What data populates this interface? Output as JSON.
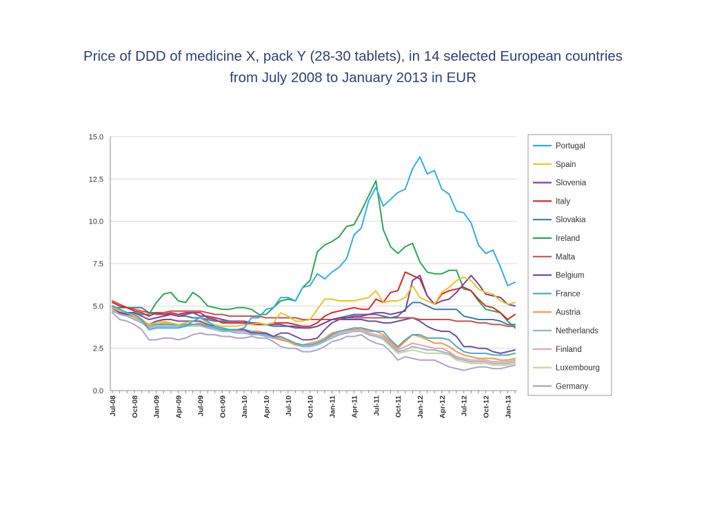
{
  "title": {
    "line1": "Price of DDD of medicine X, pack Y (28-30 tablets), in 14 selected European countries",
    "line2": "from July 2008 to January 2013 in EUR"
  },
  "chart_data": {
    "type": "line",
    "title": "Price of DDD of medicine X, pack Y (28-30 tablets), in 14 selected European countries from July 2008 to January 2013 in EUR",
    "xlabel": "",
    "ylabel": "",
    "ylim": [
      0,
      15
    ],
    "yticks": [
      "0.0",
      "2.5",
      "5.0",
      "7.5",
      "10.0",
      "12.5",
      "15.0"
    ],
    "grid": "horizontal",
    "legend": "right",
    "x_tick_labels": [
      "Jul-08",
      "Oct-08",
      "Jan-09",
      "Apr-09",
      "Jul-09",
      "Oct-09",
      "Jan-10",
      "Apr-10",
      "Jul-10",
      "Oct-10",
      "Jan-11",
      "Apr-11",
      "Jul-11",
      "Oct-11",
      "Jan-12",
      "Apr-12",
      "Jul-12",
      "Oct-12",
      "Jan-13"
    ],
    "x_months": [
      "Jul-08",
      "Aug-08",
      "Sep-08",
      "Oct-08",
      "Nov-08",
      "Dec-08",
      "Jan-09",
      "Feb-09",
      "Mar-09",
      "Apr-09",
      "May-09",
      "Jun-09",
      "Jul-09",
      "Aug-09",
      "Sep-09",
      "Oct-09",
      "Nov-09",
      "Dec-09",
      "Jan-10",
      "Feb-10",
      "Mar-10",
      "Apr-10",
      "May-10",
      "Jun-10",
      "Jul-10",
      "Aug-10",
      "Sep-10",
      "Oct-10",
      "Nov-10",
      "Dec-10",
      "Jan-11",
      "Feb-11",
      "Mar-11",
      "Apr-11",
      "May-11",
      "Jun-11",
      "Jul-11",
      "Aug-11",
      "Sep-11",
      "Oct-11",
      "Nov-11",
      "Dec-11",
      "Jan-12",
      "Feb-12",
      "Mar-12",
      "Apr-12",
      "May-12",
      "Jun-12",
      "Jul-12",
      "Aug-12",
      "Sep-12",
      "Oct-12",
      "Nov-12",
      "Dec-12",
      "Jan-13",
      "Feb-13"
    ],
    "series": [
      {
        "name": "Portugal",
        "color": "#2eaee3",
        "values": [
          5.0,
          4.8,
          4.6,
          4.5,
          4.2,
          3.6,
          3.7,
          3.7,
          3.7,
          3.7,
          3.8,
          4.1,
          4.3,
          4.1,
          3.8,
          3.7,
          3.6,
          3.6,
          3.7,
          4.3,
          4.3,
          4.8,
          4.9,
          5.5,
          5.5,
          5.3,
          6.1,
          6.2,
          6.9,
          6.6,
          7.0,
          7.3,
          7.8,
          9.2,
          9.6,
          11.2,
          12.0,
          10.9,
          11.3,
          11.7,
          11.9,
          13.1,
          13.8,
          12.8,
          13.0,
          11.9,
          11.6,
          10.6,
          10.5,
          9.9,
          8.6,
          8.1,
          8.3,
          7.3,
          6.2,
          6.4
        ]
      },
      {
        "name": "Spain",
        "color": "#f2c21f",
        "values": [
          4.9,
          4.7,
          4.6,
          4.4,
          4.2,
          3.9,
          4.0,
          4.1,
          4.0,
          3.9,
          4.0,
          4.1,
          4.3,
          4.0,
          3.9,
          3.8,
          3.8,
          3.8,
          3.9,
          3.9,
          4.0,
          3.9,
          4.0,
          4.6,
          4.4,
          4.1,
          4.1,
          4.2,
          4.8,
          5.4,
          5.4,
          5.3,
          5.3,
          5.3,
          5.4,
          5.5,
          5.9,
          5.2,
          5.3,
          5.3,
          5.5,
          6.2,
          5.5,
          5.3,
          5.1,
          5.8,
          6.1,
          6.5,
          6.7,
          6.5,
          6.0,
          5.8,
          5.7,
          5.3,
          5.1,
          5.2
        ]
      },
      {
        "name": "Slovenia",
        "color": "#7b3fa0",
        "values": [
          4.9,
          4.6,
          4.6,
          4.6,
          4.4,
          4.2,
          4.3,
          4.4,
          4.5,
          4.4,
          4.5,
          4.6,
          4.4,
          4.4,
          4.3,
          4.2,
          4.1,
          4.1,
          4.1,
          4.0,
          4.0,
          3.9,
          3.9,
          3.9,
          3.8,
          3.8,
          3.7,
          3.7,
          3.8,
          4.0,
          4.2,
          4.3,
          4.3,
          4.4,
          4.4,
          4.5,
          4.6,
          4.6,
          4.5,
          4.6,
          4.7,
          6.5,
          6.8,
          5.6,
          5.1,
          5.3,
          5.4,
          5.8,
          6.3,
          6.8,
          6.3,
          5.7,
          5.6,
          5.5,
          5.1,
          5.0
        ]
      },
      {
        "name": "Italy",
        "color": "#e02424",
        "values": [
          5.2,
          5.0,
          4.9,
          4.7,
          4.6,
          4.4,
          4.6,
          4.5,
          4.6,
          4.5,
          4.6,
          4.6,
          4.6,
          4.3,
          4.2,
          4.0,
          4.0,
          4.0,
          4.0,
          3.9,
          3.9,
          3.9,
          4.0,
          4.0,
          4.0,
          3.9,
          3.8,
          3.8,
          4.0,
          4.4,
          4.6,
          4.7,
          4.8,
          4.9,
          4.8,
          4.8,
          5.4,
          5.2,
          5.8,
          5.9,
          7.0,
          6.8,
          6.6,
          5.6,
          5.1,
          5.7,
          5.9,
          6.0,
          6.1,
          5.9,
          5.4,
          5.0,
          4.9,
          4.6,
          4.2,
          4.5
        ]
      },
      {
        "name": "Slovakia",
        "color": "#3a7da4",
        "values": [
          4.9,
          4.9,
          4.9,
          4.9,
          4.9,
          4.6,
          4.5,
          4.5,
          4.5,
          4.4,
          4.4,
          4.3,
          4.3,
          4.2,
          4.1,
          4.1,
          4.0,
          4.0,
          4.0,
          4.0,
          3.9,
          3.9,
          3.8,
          3.8,
          3.8,
          3.7,
          3.7,
          3.7,
          3.8,
          4.0,
          4.2,
          4.3,
          4.4,
          4.5,
          4.5,
          4.5,
          4.5,
          4.4,
          4.3,
          4.4,
          4.8,
          5.2,
          5.2,
          5.0,
          4.8,
          4.8,
          4.8,
          4.8,
          4.4,
          4.3,
          4.2,
          4.2,
          4.2,
          4.1,
          3.9,
          3.9
        ]
      },
      {
        "name": "Ireland",
        "color": "#26a852",
        "values": [
          5.0,
          4.8,
          4.6,
          4.6,
          4.5,
          4.5,
          5.2,
          5.7,
          5.8,
          5.3,
          5.2,
          5.8,
          5.5,
          5.0,
          4.9,
          4.8,
          4.8,
          4.9,
          4.9,
          4.8,
          4.5,
          4.5,
          4.9,
          5.3,
          5.4,
          5.3,
          6.1,
          6.5,
          8.2,
          8.6,
          8.8,
          9.1,
          9.7,
          9.8,
          10.6,
          11.5,
          12.4,
          9.5,
          8.5,
          8.1,
          8.5,
          8.7,
          7.6,
          7.0,
          6.9,
          6.9,
          7.1,
          7.1,
          6.0,
          5.9,
          5.3,
          4.8,
          4.7,
          4.6,
          4.1,
          3.7
        ]
      },
      {
        "name": "Malta",
        "color": "#c8504d",
        "values": [
          5.3,
          5.1,
          4.9,
          4.8,
          4.7,
          4.6,
          4.6,
          4.6,
          4.7,
          4.7,
          4.7,
          4.7,
          4.7,
          4.6,
          4.5,
          4.5,
          4.4,
          4.4,
          4.4,
          4.4,
          4.4,
          4.3,
          4.3,
          4.3,
          4.3,
          4.3,
          4.2,
          4.2,
          4.2,
          4.2,
          4.2,
          4.2,
          4.3,
          4.3,
          4.3,
          4.3,
          4.3,
          4.3,
          4.3,
          4.3,
          4.3,
          4.3,
          4.2,
          4.2,
          4.2,
          4.2,
          4.2,
          4.1,
          4.1,
          4.1,
          4.0,
          4.0,
          3.9,
          3.9,
          3.8,
          3.8
        ]
      },
      {
        "name": "Belgium",
        "color": "#6a4fa3",
        "values": [
          4.9,
          4.6,
          4.5,
          4.5,
          4.2,
          3.9,
          4.1,
          4.2,
          4.2,
          4.1,
          4.1,
          4.1,
          4.1,
          3.9,
          3.8,
          3.7,
          3.6,
          3.6,
          3.6,
          3.4,
          3.4,
          3.4,
          3.2,
          3.4,
          3.4,
          3.2,
          3.0,
          3.0,
          3.1,
          3.6,
          4.0,
          4.2,
          4.2,
          4.2,
          4.2,
          4.1,
          4.1,
          4.0,
          4.0,
          4.1,
          4.2,
          4.3,
          4.1,
          3.8,
          3.6,
          3.5,
          3.5,
          3.2,
          2.6,
          2.6,
          2.5,
          2.5,
          2.3,
          2.2,
          2.3,
          2.4
        ]
      },
      {
        "name": "France",
        "color": "#4bacc6",
        "values": [
          4.9,
          4.6,
          4.5,
          4.4,
          4.2,
          3.9,
          3.9,
          3.9,
          3.9,
          3.9,
          3.9,
          3.9,
          3.9,
          3.8,
          3.7,
          3.6,
          3.6,
          3.6,
          3.6,
          3.5,
          3.4,
          3.3,
          3.2,
          3.2,
          3.0,
          2.8,
          2.7,
          2.7,
          2.8,
          3.0,
          3.3,
          3.5,
          3.6,
          3.7,
          3.7,
          3.6,
          3.5,
          3.5,
          3.0,
          2.6,
          3.0,
          3.3,
          3.3,
          3.1,
          3.1,
          3.1,
          3.0,
          2.6,
          2.3,
          2.2,
          2.2,
          2.2,
          2.1,
          2.1,
          2.1,
          2.2
        ]
      },
      {
        "name": "Austria",
        "color": "#f79646",
        "values": [
          4.9,
          4.6,
          4.5,
          4.4,
          4.1,
          3.8,
          3.9,
          4.0,
          4.0,
          3.9,
          3.9,
          3.9,
          4.0,
          3.8,
          3.7,
          3.6,
          3.6,
          3.6,
          3.6,
          3.5,
          3.5,
          3.4,
          3.2,
          3.0,
          2.9,
          2.7,
          2.7,
          2.8,
          2.9,
          3.1,
          3.4,
          3.5,
          3.6,
          3.6,
          3.7,
          3.5,
          3.5,
          3.3,
          2.9,
          2.5,
          2.9,
          3.3,
          3.2,
          3.0,
          2.8,
          2.8,
          2.6,
          2.3,
          2.1,
          2.0,
          1.9,
          1.9,
          1.9,
          1.8,
          1.8,
          1.9
        ]
      },
      {
        "name": "Netherlands",
        "color": "#95b3d7",
        "values": [
          4.7,
          4.5,
          4.4,
          4.2,
          4.0,
          3.7,
          3.8,
          3.8,
          3.8,
          3.8,
          3.8,
          3.9,
          3.9,
          3.7,
          3.6,
          3.5,
          3.5,
          3.4,
          3.4,
          3.3,
          3.3,
          3.2,
          3.1,
          3.0,
          2.9,
          2.7,
          2.6,
          2.6,
          2.7,
          2.9,
          3.1,
          3.3,
          3.4,
          3.5,
          3.5,
          3.3,
          3.2,
          3.1,
          2.7,
          2.3,
          2.4,
          2.6,
          2.5,
          2.4,
          2.4,
          2.3,
          2.2,
          1.9,
          1.8,
          1.7,
          1.7,
          1.7,
          1.6,
          1.6,
          1.6,
          1.7
        ]
      },
      {
        "name": "Finland",
        "color": "#e6a3a0",
        "values": [
          4.8,
          4.6,
          4.5,
          4.3,
          4.1,
          3.8,
          3.9,
          3.9,
          3.9,
          3.8,
          3.9,
          3.9,
          3.9,
          3.7,
          3.6,
          3.5,
          3.5,
          3.5,
          3.5,
          3.4,
          3.4,
          3.3,
          3.2,
          3.1,
          3.0,
          2.8,
          2.7,
          2.7,
          2.8,
          3.0,
          3.2,
          3.4,
          3.5,
          3.6,
          3.6,
          3.4,
          3.3,
          3.2,
          2.8,
          2.4,
          2.6,
          2.8,
          2.7,
          2.6,
          2.5,
          2.5,
          2.3,
          2.0,
          1.9,
          1.8,
          1.8,
          1.8,
          1.7,
          1.7,
          1.7,
          1.8
        ]
      },
      {
        "name": "Luxembourg",
        "color": "#c4d79b",
        "values": [
          4.8,
          4.5,
          4.4,
          4.2,
          4.0,
          3.7,
          3.8,
          3.8,
          3.8,
          3.8,
          3.8,
          3.8,
          3.8,
          3.7,
          3.6,
          3.5,
          3.5,
          3.4,
          3.4,
          3.3,
          3.3,
          3.2,
          3.1,
          3.0,
          2.9,
          2.7,
          2.6,
          2.6,
          2.7,
          2.9,
          3.1,
          3.3,
          3.4,
          3.5,
          3.5,
          3.3,
          3.2,
          3.0,
          2.6,
          2.2,
          2.3,
          2.4,
          2.3,
          2.2,
          2.2,
          2.2,
          2.1,
          1.8,
          1.7,
          1.6,
          1.6,
          1.6,
          1.5,
          1.5,
          1.5,
          1.6
        ]
      },
      {
        "name": "Germany",
        "color": "#b2a2c7",
        "values": [
          4.6,
          4.2,
          4.1,
          3.9,
          3.6,
          3.0,
          3.0,
          3.1,
          3.1,
          3.0,
          3.1,
          3.3,
          3.4,
          3.3,
          3.3,
          3.2,
          3.2,
          3.1,
          3.1,
          3.2,
          3.1,
          3.1,
          2.9,
          2.6,
          2.5,
          2.5,
          2.3,
          2.3,
          2.4,
          2.6,
          2.9,
          3.0,
          3.2,
          3.2,
          3.3,
          3.0,
          2.8,
          2.7,
          2.3,
          1.8,
          2.0,
          1.9,
          1.8,
          1.8,
          1.8,
          1.6,
          1.4,
          1.3,
          1.2,
          1.3,
          1.4,
          1.4,
          1.3,
          1.3,
          1.4,
          1.5
        ]
      }
    ]
  }
}
